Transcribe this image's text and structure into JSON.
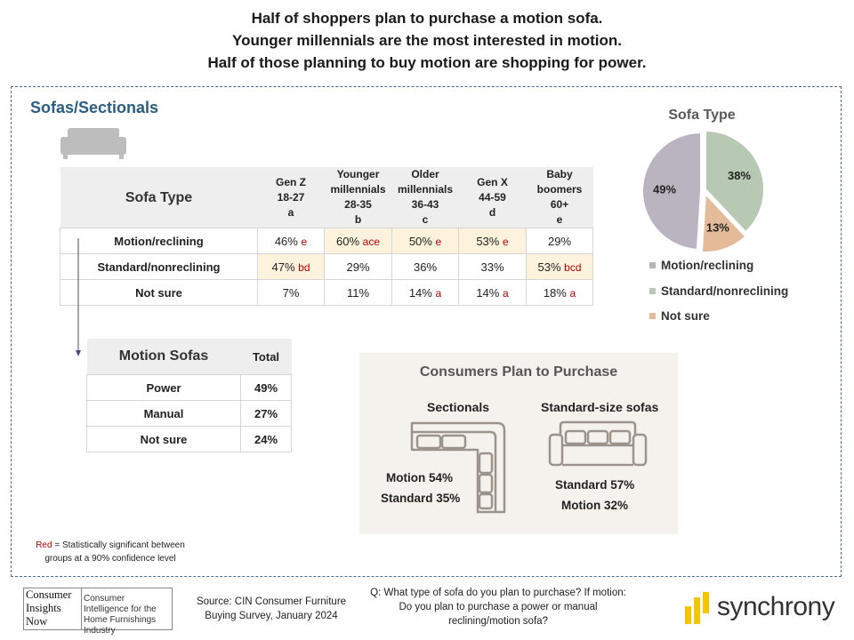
{
  "headline": [
    "Half of shoppers plan to purchase a motion sofa.",
    "Younger millennials are the most interested in motion.",
    "Half of those planning to buy motion are shopping  for power."
  ],
  "section_title": "Sofas/Sectionals",
  "table": {
    "header_label": "Sofa Type",
    "columns": [
      {
        "name": "Gen Z",
        "range": "18-27",
        "letter": "a"
      },
      {
        "name": "Younger millennials",
        "range": "28-35",
        "letter": "b"
      },
      {
        "name": "Older millennials",
        "range": "36-43",
        "letter": "c"
      },
      {
        "name": "Gen X",
        "range": "44-59",
        "letter": "d"
      },
      {
        "name": "Baby boomers",
        "range": "60+",
        "letter": "e"
      }
    ],
    "rows": [
      {
        "label": "Motion/reclining",
        "cells": [
          {
            "value": "46%",
            "sig": "e",
            "hl": false
          },
          {
            "value": "60%",
            "sig": "ace",
            "hl": true
          },
          {
            "value": "50%",
            "sig": "e",
            "hl": true
          },
          {
            "value": "53%",
            "sig": "e",
            "hl": true
          },
          {
            "value": "29%",
            "sig": "",
            "hl": false
          }
        ]
      },
      {
        "label": "Standard/nonreclining",
        "cells": [
          {
            "value": "47%",
            "sig": "bd",
            "hl": true
          },
          {
            "value": "29%",
            "sig": "",
            "hl": false
          },
          {
            "value": "36%",
            "sig": "",
            "hl": false
          },
          {
            "value": "33%",
            "sig": "",
            "hl": false
          },
          {
            "value": "53%",
            "sig": "bcd",
            "hl": true
          }
        ]
      },
      {
        "label": "Not sure",
        "cells": [
          {
            "value": "7%",
            "sig": "",
            "hl": false
          },
          {
            "value": "11%",
            "sig": "",
            "hl": false
          },
          {
            "value": "14%",
            "sig": "a",
            "hl": false
          },
          {
            "value": "14%",
            "sig": "a",
            "hl": false
          },
          {
            "value": "18%",
            "sig": "a",
            "hl": false
          }
        ]
      }
    ]
  },
  "motion_table": {
    "title": "Motion Sofas",
    "total_label": "Total",
    "rows": [
      {
        "label": "Power",
        "value": "49%"
      },
      {
        "label": "Manual",
        "value": "27%"
      },
      {
        "label": "Not sure",
        "value": "24%"
      }
    ]
  },
  "footnote": {
    "red_word": "Red",
    "text": " = Statistically significant between groups at a 90% confidence level"
  },
  "consumers": {
    "title": "Consumers Plan to Purchase",
    "sectionals": {
      "title": "Sectionals",
      "line1": "Motion 54%",
      "line2": "Standard 35%"
    },
    "standard": {
      "title": "Standard-size sofas",
      "line1": "Standard 57%",
      "line2": "Motion 32%"
    }
  },
  "chart_data": {
    "type": "pie",
    "title": "Sofa Type",
    "slices": [
      {
        "label": "Motion/reclining",
        "value": 49,
        "display": "49%",
        "color": "#b9b4c0"
      },
      {
        "label": "Standard/nonreclining",
        "value": 38,
        "display": "38%",
        "color": "#b7c9b3"
      },
      {
        "label": "Not sure",
        "value": 13,
        "display": "13%",
        "color": "#e4bb98"
      }
    ],
    "legend_position": "bottom"
  },
  "footer": {
    "logo": {
      "line1": "Consumer",
      "line2": "Insights",
      "line3": "Now",
      "desc": "Consumer Intelligence for the Home Furnishings Industry"
    },
    "source": "Source: CIN Consumer Furniture Buying Survey, January 2024",
    "question": "Q: What type of sofa do you plan to purchase? If motion: Do you plan to purchase a power or manual reclining/motion sofa?",
    "brand": "synchrony"
  },
  "colors": {
    "accent_blue": "#2b5d83",
    "significance_red": "#c00000",
    "highlight": "#fdf3dd",
    "synchrony_yellow": "#f4c500"
  }
}
